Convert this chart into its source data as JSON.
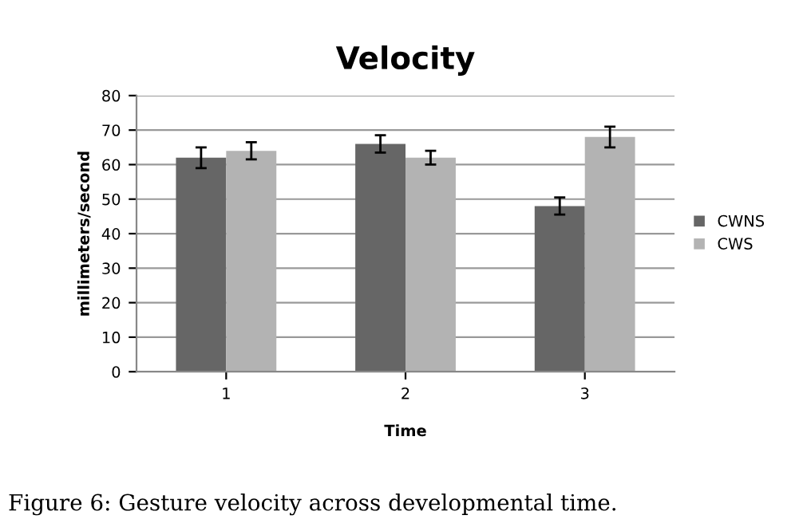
{
  "chart_data": {
    "type": "bar",
    "title": "Velocity",
    "xlabel": "Time",
    "ylabel": "millimeters/second",
    "categories": [
      "1",
      "2",
      "3"
    ],
    "series": [
      {
        "name": "CWNS",
        "color": "#666666",
        "values": [
          62,
          66,
          48
        ],
        "errors": [
          3,
          2.5,
          2.5
        ]
      },
      {
        "name": "CWS",
        "color": "#b3b3b3",
        "values": [
          64,
          62,
          68
        ],
        "errors": [
          2.5,
          2,
          3
        ]
      }
    ],
    "ylim": [
      0,
      80
    ],
    "yticks": [
      0,
      10,
      20,
      30,
      40,
      50,
      60,
      70,
      80
    ],
    "grid": "y",
    "legend": "right",
    "annotations": [
      "Figure 6: Gesture velocity across developmental time."
    ]
  }
}
